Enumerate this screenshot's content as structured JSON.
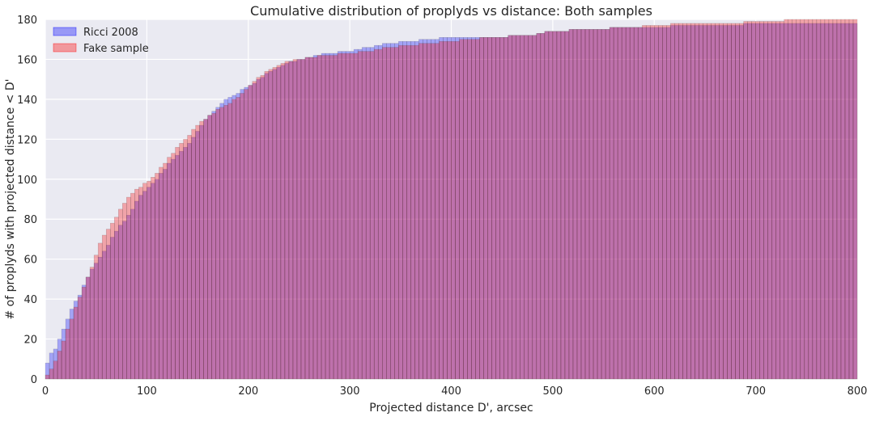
{
  "chart_data": {
    "type": "bar",
    "subtype": "cumulative-histogram",
    "title": "Cumulative distribution of proplyds vs distance: Both samples",
    "xlabel": "Projected distance D', arcsec",
    "ylabel": "# of proplyds with projected distance < D'",
    "xlim": [
      0,
      800
    ],
    "ylim": [
      0,
      180
    ],
    "xticks": [
      "0",
      "100",
      "200",
      "300",
      "400",
      "500",
      "600",
      "700",
      "800"
    ],
    "yticks": [
      "0",
      "20",
      "40",
      "60",
      "80",
      "100",
      "120",
      "140",
      "160",
      "180"
    ],
    "bin_width": 4,
    "grid": true,
    "legend": "top-left",
    "series": [
      {
        "name": "Ricci 2008",
        "color": "#0000ff",
        "opacity": 0.3,
        "knots": [
          [
            0,
            0
          ],
          [
            4,
            8
          ],
          [
            8,
            13
          ],
          [
            12,
            15
          ],
          [
            16,
            20
          ],
          [
            20,
            25
          ],
          [
            24,
            30
          ],
          [
            28,
            35
          ],
          [
            32,
            39
          ],
          [
            36,
            42
          ],
          [
            40,
            47
          ],
          [
            48,
            55
          ],
          [
            56,
            61
          ],
          [
            64,
            67
          ],
          [
            72,
            74
          ],
          [
            80,
            79
          ],
          [
            88,
            85
          ],
          [
            96,
            92
          ],
          [
            104,
            96
          ],
          [
            112,
            100
          ],
          [
            120,
            105
          ],
          [
            128,
            110
          ],
          [
            136,
            114
          ],
          [
            144,
            118
          ],
          [
            152,
            124
          ],
          [
            160,
            130
          ],
          [
            168,
            134
          ],
          [
            176,
            138
          ],
          [
            184,
            141
          ],
          [
            192,
            143
          ],
          [
            200,
            146
          ],
          [
            208,
            148
          ],
          [
            216,
            151
          ],
          [
            224,
            154
          ],
          [
            232,
            156
          ],
          [
            240,
            158
          ],
          [
            248,
            159
          ],
          [
            256,
            160
          ],
          [
            264,
            161
          ],
          [
            280,
            163
          ],
          [
            300,
            164
          ],
          [
            320,
            166
          ],
          [
            340,
            168
          ],
          [
            360,
            169
          ],
          [
            400,
            171
          ],
          [
            440,
            171
          ],
          [
            480,
            172
          ],
          [
            500,
            174
          ],
          [
            540,
            175
          ],
          [
            580,
            176
          ],
          [
            600,
            176
          ],
          [
            640,
            177
          ],
          [
            680,
            177
          ],
          [
            700,
            178
          ],
          [
            760,
            178
          ],
          [
            800,
            178
          ]
        ]
      },
      {
        "name": "Fake sample",
        "color": "#ff0000",
        "opacity": 0.3,
        "knots": [
          [
            0,
            0
          ],
          [
            4,
            2
          ],
          [
            8,
            5
          ],
          [
            12,
            9
          ],
          [
            16,
            14
          ],
          [
            20,
            19
          ],
          [
            24,
            25
          ],
          [
            28,
            30
          ],
          [
            32,
            36
          ],
          [
            36,
            41
          ],
          [
            40,
            46
          ],
          [
            48,
            56
          ],
          [
            56,
            68
          ],
          [
            64,
            75
          ],
          [
            72,
            81
          ],
          [
            80,
            88
          ],
          [
            88,
            93
          ],
          [
            96,
            96
          ],
          [
            104,
            99
          ],
          [
            112,
            103
          ],
          [
            120,
            108
          ],
          [
            128,
            113
          ],
          [
            136,
            118
          ],
          [
            144,
            122
          ],
          [
            152,
            127
          ],
          [
            160,
            130
          ],
          [
            168,
            133
          ],
          [
            176,
            136
          ],
          [
            184,
            138
          ],
          [
            192,
            141
          ],
          [
            200,
            145
          ],
          [
            208,
            149
          ],
          [
            216,
            152
          ],
          [
            224,
            155
          ],
          [
            232,
            157
          ],
          [
            240,
            159
          ],
          [
            256,
            160
          ],
          [
            264,
            161
          ],
          [
            280,
            162
          ],
          [
            300,
            163
          ],
          [
            320,
            164
          ],
          [
            340,
            166
          ],
          [
            360,
            167
          ],
          [
            400,
            169
          ],
          [
            440,
            171
          ],
          [
            480,
            172
          ],
          [
            500,
            174
          ],
          [
            540,
            175
          ],
          [
            580,
            176
          ],
          [
            600,
            177
          ],
          [
            640,
            178
          ],
          [
            680,
            178
          ],
          [
            700,
            179
          ],
          [
            760,
            180
          ],
          [
            800,
            180
          ]
        ]
      }
    ]
  }
}
